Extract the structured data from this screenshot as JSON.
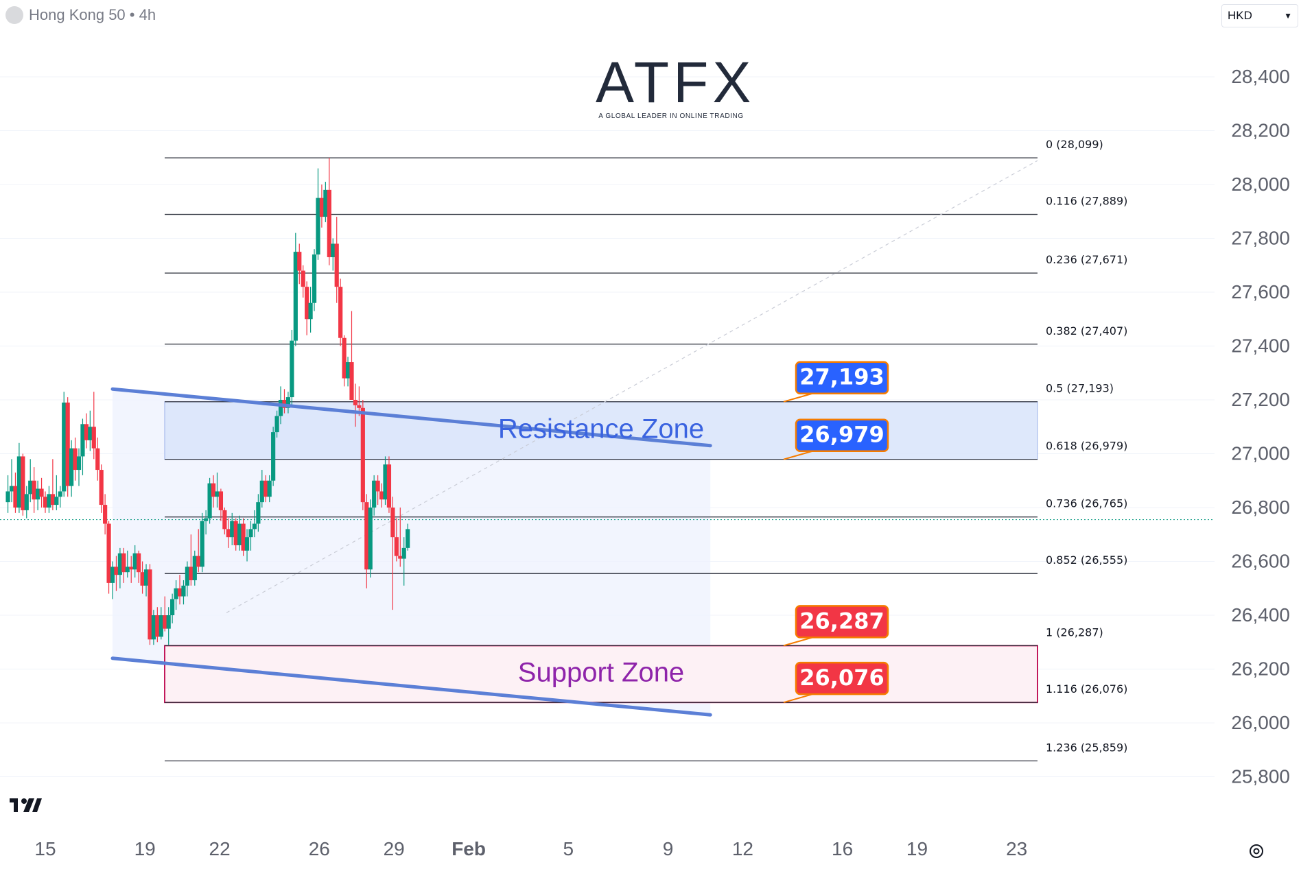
{
  "header": {
    "symbol_label": "Hong Kong 50 • 4h"
  },
  "currency_select": {
    "value": "HKD"
  },
  "logo": {
    "word": "ATFX",
    "tagline": "A GLOBAL LEADER IN ONLINE TRADING"
  },
  "icons": {
    "status_dot": "circle-icon",
    "currency_chevron": "chevron-down-icon",
    "tradingview_logo": "tradingview-logo-icon",
    "chart_settings": "gear-icon"
  },
  "colors": {
    "up": "#089981",
    "down": "#f23645",
    "channel_line": "#5b7fd6",
    "resistance_fill": "#dbe6fb",
    "support_border": "#c2185b",
    "resistance_label_bg": "#2962ff",
    "support_label_bg": "#f23645",
    "zone_text_resistance": "#3a63e0",
    "zone_text_support": "#8e24aa"
  },
  "chart_data": {
    "type": "candlestick",
    "title": "Hong Kong 50 • 4h",
    "ylim": [
      25720,
      28720
    ],
    "y_ticks": [
      28400,
      28200,
      28000,
      27800,
      27600,
      27400,
      27200,
      27000,
      26800,
      26600,
      26400,
      26200,
      26000,
      25800
    ],
    "y_tick_labels": [
      "28,400",
      "28,200",
      "28,000",
      "27,800",
      "27,600",
      "27,400",
      "27,200",
      "27,000",
      "26,800",
      "26,600",
      "26,400",
      "26,200",
      "26,000",
      "25,800"
    ],
    "x_ticks": [
      {
        "label": "15",
        "day": 0
      },
      {
        "label": "19",
        "day": 4
      },
      {
        "label": "22",
        "day": 7
      },
      {
        "label": "26",
        "day": 11
      },
      {
        "label": "29",
        "day": 14
      },
      {
        "label": "Feb",
        "day": 17
      },
      {
        "label": "5",
        "day": 21
      },
      {
        "label": "9",
        "day": 25
      },
      {
        "label": "12",
        "day": 28
      },
      {
        "label": "16",
        "day": 32
      },
      {
        "label": "19",
        "day": 35
      },
      {
        "label": "23",
        "day": 39
      }
    ],
    "candles": [
      {
        "d": -1.5,
        "o": 26820,
        "h": 26920,
        "l": 26780,
        "c": 26860
      },
      {
        "d": -1.35,
        "o": 26860,
        "h": 26980,
        "l": 26820,
        "c": 26880
      },
      {
        "d": -1.2,
        "o": 26880,
        "h": 26930,
        "l": 26780,
        "c": 26800
      },
      {
        "d": -1.05,
        "o": 26800,
        "h": 27040,
        "l": 26780,
        "c": 26990
      },
      {
        "d": -0.9,
        "o": 26990,
        "h": 27000,
        "l": 26770,
        "c": 26790
      },
      {
        "d": -0.75,
        "o": 26790,
        "h": 26880,
        "l": 26760,
        "c": 26850
      },
      {
        "d": -0.6,
        "o": 26850,
        "h": 26980,
        "l": 26820,
        "c": 26900
      },
      {
        "d": -0.45,
        "o": 26900,
        "h": 26950,
        "l": 26780,
        "c": 26830
      },
      {
        "d": -0.3,
        "o": 26830,
        "h": 26900,
        "l": 26790,
        "c": 26870
      },
      {
        "d": -0.15,
        "o": 26870,
        "h": 26910,
        "l": 26800,
        "c": 26840
      },
      {
        "d": 0.0,
        "o": 26840,
        "h": 26860,
        "l": 26780,
        "c": 26800
      },
      {
        "d": 0.15,
        "o": 26800,
        "h": 26880,
        "l": 26780,
        "c": 26850
      },
      {
        "d": 0.3,
        "o": 26850,
        "h": 26980,
        "l": 26790,
        "c": 26810
      },
      {
        "d": 0.45,
        "o": 26810,
        "h": 26920,
        "l": 26790,
        "c": 26840
      },
      {
        "d": 0.6,
        "o": 26840,
        "h": 26880,
        "l": 26800,
        "c": 26860
      },
      {
        "d": 0.75,
        "o": 26860,
        "h": 27230,
        "l": 26840,
        "c": 27190
      },
      {
        "d": 0.9,
        "o": 27190,
        "h": 27210,
        "l": 26840,
        "c": 26880
      },
      {
        "d": 1.05,
        "o": 26880,
        "h": 27050,
        "l": 26840,
        "c": 27020
      },
      {
        "d": 1.2,
        "o": 27020,
        "h": 27060,
        "l": 26900,
        "c": 26940
      },
      {
        "d": 1.35,
        "o": 26940,
        "h": 27020,
        "l": 26880,
        "c": 26990
      },
      {
        "d": 1.5,
        "o": 26990,
        "h": 27130,
        "l": 26920,
        "c": 27110
      },
      {
        "d": 1.65,
        "o": 27110,
        "h": 27150,
        "l": 27020,
        "c": 27050
      },
      {
        "d": 1.8,
        "o": 27050,
        "h": 27160,
        "l": 27010,
        "c": 27100
      },
      {
        "d": 1.95,
        "o": 27100,
        "h": 27230,
        "l": 26980,
        "c": 27020
      },
      {
        "d": 2.1,
        "o": 27020,
        "h": 27060,
        "l": 26900,
        "c": 26940
      },
      {
        "d": 2.25,
        "o": 26940,
        "h": 26960,
        "l": 26780,
        "c": 26810
      },
      {
        "d": 2.4,
        "o": 26810,
        "h": 26850,
        "l": 26700,
        "c": 26740
      },
      {
        "d": 2.55,
        "o": 26740,
        "h": 26750,
        "l": 26480,
        "c": 26520
      },
      {
        "d": 2.7,
        "o": 26520,
        "h": 26600,
        "l": 26460,
        "c": 26580
      },
      {
        "d": 2.85,
        "o": 26580,
        "h": 26620,
        "l": 26490,
        "c": 26550
      },
      {
        "d": 3.0,
        "o": 26550,
        "h": 26650,
        "l": 26500,
        "c": 26630
      },
      {
        "d": 3.15,
        "o": 26630,
        "h": 26650,
        "l": 26520,
        "c": 26560
      },
      {
        "d": 3.3,
        "o": 26560,
        "h": 26640,
        "l": 26540,
        "c": 26580
      },
      {
        "d": 3.45,
        "o": 26580,
        "h": 26620,
        "l": 26520,
        "c": 26570
      },
      {
        "d": 3.6,
        "o": 26570,
        "h": 26660,
        "l": 26540,
        "c": 26630
      },
      {
        "d": 3.75,
        "o": 26630,
        "h": 26640,
        "l": 26520,
        "c": 26560
      },
      {
        "d": 3.9,
        "o": 26560,
        "h": 26600,
        "l": 26480,
        "c": 26510
      },
      {
        "d": 4.05,
        "o": 26510,
        "h": 26590,
        "l": 26470,
        "c": 26570
      },
      {
        "d": 4.2,
        "o": 26570,
        "h": 26590,
        "l": 26290,
        "c": 26310
      },
      {
        "d": 4.35,
        "o": 26310,
        "h": 26420,
        "l": 26290,
        "c": 26400
      },
      {
        "d": 4.5,
        "o": 26400,
        "h": 26430,
        "l": 26300,
        "c": 26320
      },
      {
        "d": 4.65,
        "o": 26320,
        "h": 26430,
        "l": 26310,
        "c": 26400
      },
      {
        "d": 4.8,
        "o": 26400,
        "h": 26470,
        "l": 26340,
        "c": 26350
      },
      {
        "d": 4.95,
        "o": 26350,
        "h": 26430,
        "l": 26290,
        "c": 26400
      },
      {
        "d": 5.1,
        "o": 26400,
        "h": 26480,
        "l": 26370,
        "c": 26460
      },
      {
        "d": 5.25,
        "o": 26460,
        "h": 26530,
        "l": 26420,
        "c": 26500
      },
      {
        "d": 5.4,
        "o": 26500,
        "h": 26550,
        "l": 26440,
        "c": 26470
      },
      {
        "d": 5.55,
        "o": 26470,
        "h": 26530,
        "l": 26440,
        "c": 26510
      },
      {
        "d": 5.7,
        "o": 26510,
        "h": 26600,
        "l": 26470,
        "c": 26580
      },
      {
        "d": 5.85,
        "o": 26580,
        "h": 26700,
        "l": 26510,
        "c": 26530
      },
      {
        "d": 6.0,
        "o": 26530,
        "h": 26640,
        "l": 26510,
        "c": 26620
      },
      {
        "d": 6.15,
        "o": 26620,
        "h": 26720,
        "l": 26560,
        "c": 26580
      },
      {
        "d": 6.3,
        "o": 26580,
        "h": 26780,
        "l": 26560,
        "c": 26750
      },
      {
        "d": 6.45,
        "o": 26750,
        "h": 26790,
        "l": 26700,
        "c": 26760
      },
      {
        "d": 6.6,
        "o": 26760,
        "h": 26910,
        "l": 26740,
        "c": 26890
      },
      {
        "d": 6.75,
        "o": 26890,
        "h": 26920,
        "l": 26800,
        "c": 26840
      },
      {
        "d": 6.9,
        "o": 26840,
        "h": 26930,
        "l": 26800,
        "c": 26860
      },
      {
        "d": 7.05,
        "o": 26860,
        "h": 26870,
        "l": 26750,
        "c": 26790
      },
      {
        "d": 7.2,
        "o": 26790,
        "h": 26800,
        "l": 26700,
        "c": 26720
      },
      {
        "d": 7.35,
        "o": 26720,
        "h": 26760,
        "l": 26650,
        "c": 26690
      },
      {
        "d": 7.5,
        "o": 26690,
        "h": 26780,
        "l": 26660,
        "c": 26750
      },
      {
        "d": 7.65,
        "o": 26750,
        "h": 26760,
        "l": 26640,
        "c": 26660
      },
      {
        "d": 7.8,
        "o": 26660,
        "h": 26770,
        "l": 26640,
        "c": 26740
      },
      {
        "d": 7.95,
        "o": 26740,
        "h": 26760,
        "l": 26620,
        "c": 26640
      },
      {
        "d": 8.1,
        "o": 26640,
        "h": 26720,
        "l": 26600,
        "c": 26690
      },
      {
        "d": 8.25,
        "o": 26690,
        "h": 26750,
        "l": 26640,
        "c": 26720
      },
      {
        "d": 8.4,
        "o": 26720,
        "h": 26790,
        "l": 26690,
        "c": 26740
      },
      {
        "d": 8.55,
        "o": 26740,
        "h": 26850,
        "l": 26710,
        "c": 26820
      },
      {
        "d": 8.7,
        "o": 26820,
        "h": 26940,
        "l": 26800,
        "c": 26900
      },
      {
        "d": 8.85,
        "o": 26900,
        "h": 26920,
        "l": 26820,
        "c": 26840
      },
      {
        "d": 9.0,
        "o": 26840,
        "h": 26920,
        "l": 26820,
        "c": 26900
      },
      {
        "d": 9.15,
        "o": 26900,
        "h": 27100,
        "l": 26880,
        "c": 27080
      },
      {
        "d": 9.3,
        "o": 27080,
        "h": 27160,
        "l": 27060,
        "c": 27140
      },
      {
        "d": 9.45,
        "o": 27140,
        "h": 27250,
        "l": 27110,
        "c": 27200
      },
      {
        "d": 9.6,
        "o": 27200,
        "h": 27240,
        "l": 27150,
        "c": 27170
      },
      {
        "d": 9.75,
        "o": 27170,
        "h": 27230,
        "l": 27150,
        "c": 27210
      },
      {
        "d": 9.9,
        "o": 27210,
        "h": 27460,
        "l": 27180,
        "c": 27420
      },
      {
        "d": 10.05,
        "o": 27420,
        "h": 27820,
        "l": 27400,
        "c": 27750
      },
      {
        "d": 10.2,
        "o": 27750,
        "h": 27780,
        "l": 27630,
        "c": 27680
      },
      {
        "d": 10.35,
        "o": 27680,
        "h": 27700,
        "l": 27580,
        "c": 27620
      },
      {
        "d": 10.5,
        "o": 27620,
        "h": 27640,
        "l": 27440,
        "c": 27500
      },
      {
        "d": 10.65,
        "o": 27500,
        "h": 27620,
        "l": 27450,
        "c": 27560
      },
      {
        "d": 10.8,
        "o": 27560,
        "h": 27760,
        "l": 27530,
        "c": 27740
      },
      {
        "d": 10.95,
        "o": 27740,
        "h": 28060,
        "l": 27720,
        "c": 27950
      },
      {
        "d": 11.1,
        "o": 27950,
        "h": 28000,
        "l": 27840,
        "c": 27880
      },
      {
        "d": 11.25,
        "o": 27880,
        "h": 28010,
        "l": 27860,
        "c": 27980
      },
      {
        "d": 11.4,
        "o": 27980,
        "h": 28099,
        "l": 27700,
        "c": 27730
      },
      {
        "d": 11.55,
        "o": 27730,
        "h": 27800,
        "l": 27680,
        "c": 27780
      },
      {
        "d": 11.7,
        "o": 27780,
        "h": 27880,
        "l": 27560,
        "c": 27620
      },
      {
        "d": 11.85,
        "o": 27620,
        "h": 27650,
        "l": 27400,
        "c": 27430
      },
      {
        "d": 12.0,
        "o": 27430,
        "h": 27440,
        "l": 27250,
        "c": 27280
      },
      {
        "d": 12.15,
        "o": 27280,
        "h": 27360,
        "l": 27250,
        "c": 27340
      },
      {
        "d": 12.3,
        "o": 27340,
        "h": 27530,
        "l": 27200,
        "c": 27200
      },
      {
        "d": 12.45,
        "o": 27200,
        "h": 27260,
        "l": 27100,
        "c": 27180
      },
      {
        "d": 12.6,
        "o": 27180,
        "h": 27250,
        "l": 27140,
        "c": 27170
      },
      {
        "d": 12.75,
        "o": 27170,
        "h": 27200,
        "l": 26790,
        "c": 26820
      },
      {
        "d": 12.9,
        "o": 26820,
        "h": 26850,
        "l": 26500,
        "c": 26570
      },
      {
        "d": 13.05,
        "o": 26570,
        "h": 26830,
        "l": 26540,
        "c": 26800
      },
      {
        "d": 13.2,
        "o": 26800,
        "h": 26920,
        "l": 26770,
        "c": 26900
      },
      {
        "d": 13.35,
        "o": 26900,
        "h": 26920,
        "l": 26810,
        "c": 26860
      },
      {
        "d": 13.5,
        "o": 26860,
        "h": 26890,
        "l": 26800,
        "c": 26830
      },
      {
        "d": 13.65,
        "o": 26830,
        "h": 26990,
        "l": 26810,
        "c": 26960
      },
      {
        "d": 13.8,
        "o": 26960,
        "h": 26990,
        "l": 26780,
        "c": 26800
      },
      {
        "d": 13.95,
        "o": 26800,
        "h": 26840,
        "l": 26420,
        "c": 26690
      },
      {
        "d": 14.1,
        "o": 26690,
        "h": 26760,
        "l": 26600,
        "c": 26620
      },
      {
        "d": 14.25,
        "o": 26620,
        "h": 26800,
        "l": 26580,
        "c": 26610
      },
      {
        "d": 14.4,
        "o": 26610,
        "h": 26690,
        "l": 26510,
        "c": 26650
      },
      {
        "d": 14.55,
        "o": 26650,
        "h": 26740,
        "l": 26640,
        "c": 26720
      }
    ],
    "fib_levels": [
      {
        "ratio": "0",
        "price": 28099,
        "label": "0 (28,099)"
      },
      {
        "ratio": "0.116",
        "price": 27889,
        "label": "0.116 (27,889)"
      },
      {
        "ratio": "0.236",
        "price": 27671,
        "label": "0.236 (27,671)"
      },
      {
        "ratio": "0.382",
        "price": 27407,
        "label": "0.382 (27,407)"
      },
      {
        "ratio": "0.5",
        "price": 27193,
        "label": "0.5 (27,193)"
      },
      {
        "ratio": "0.618",
        "price": 26979,
        "label": "0.618 (26,979)"
      },
      {
        "ratio": "0.736",
        "price": 26765,
        "label": "0.736 (26,765)"
      },
      {
        "ratio": "0.852",
        "price": 26555,
        "label": "0.852 (26,555)"
      },
      {
        "ratio": "1",
        "price": 26287,
        "label": "1 (26,287)"
      },
      {
        "ratio": "1.116",
        "price": 26076,
        "label": "1.116 (26,076)"
      },
      {
        "ratio": "1.236",
        "price": 25859,
        "label": "1.236 (25,859)"
      }
    ],
    "zones": [
      {
        "name": "Resistance Zone",
        "top": 27193,
        "bottom": 26979
      },
      {
        "name": "Support Zone",
        "top": 26287,
        "bottom": 26076
      }
    ],
    "channel": {
      "upper": [
        {
          "day": 2.7,
          "price": 27240
        },
        {
          "day": 26.7,
          "price": 27030
        }
      ],
      "lower": [
        {
          "day": 2.7,
          "price": 26240
        },
        {
          "day": 26.7,
          "price": 26030
        }
      ]
    },
    "callouts": [
      {
        "text": "27,193",
        "price": 27193,
        "kind": "resistance"
      },
      {
        "text": "26,979",
        "price": 26979,
        "kind": "resistance"
      },
      {
        "text": "26,287",
        "price": 26287,
        "kind": "support"
      },
      {
        "text": "26,076",
        "price": 26076,
        "kind": "support"
      }
    ],
    "current_price": 26755,
    "grid": true
  }
}
